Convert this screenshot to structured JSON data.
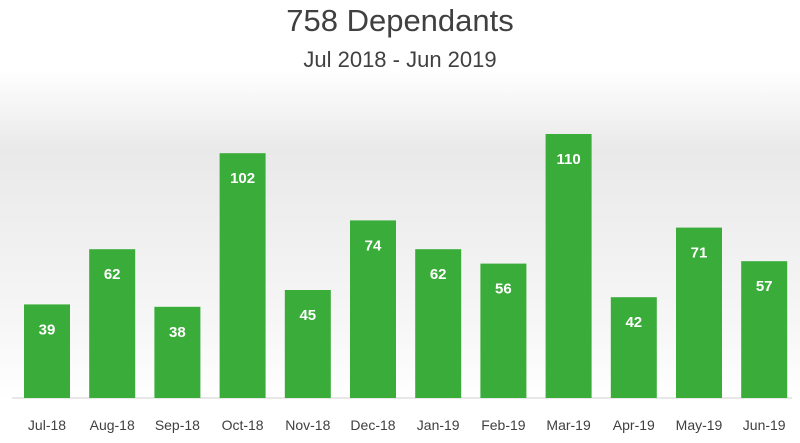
{
  "chart_data": {
    "type": "bar",
    "title": "758 Dependants",
    "subtitle": "Jul 2018 - Jun 2019",
    "categories": [
      "Jul-18",
      "Aug-18",
      "Sep-18",
      "Oct-18",
      "Nov-18",
      "Dec-18",
      "Jan-19",
      "Feb-19",
      "Mar-19",
      "Apr-19",
      "May-19",
      "Jun-19"
    ],
    "values": [
      39,
      62,
      38,
      102,
      45,
      74,
      62,
      56,
      110,
      42,
      71,
      57
    ],
    "xlabel": "",
    "ylabel": "",
    "ylim": [
      0,
      110
    ],
    "grid": false,
    "legend": "none",
    "bar_color": "#3aac3a",
    "label_color": "#ffffff",
    "text_color": "#404040"
  }
}
